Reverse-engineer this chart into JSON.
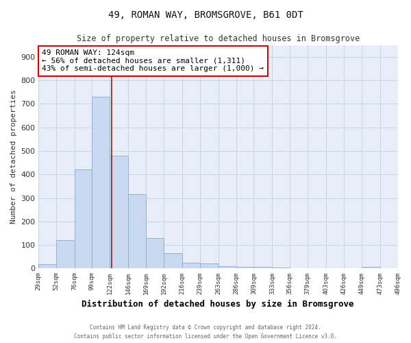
{
  "title": "49, ROMAN WAY, BROMSGROVE, B61 0DT",
  "subtitle": "Size of property relative to detached houses in Bromsgrove",
  "xlabel": "Distribution of detached houses by size in Bromsgrove",
  "ylabel": "Number of detached properties",
  "annotation_line1": "49 ROMAN WAY: 124sqm",
  "annotation_line2": "← 56% of detached houses are smaller (1,311)",
  "annotation_line3": "43% of semi-detached houses are larger (1,000) →",
  "footnote1": "Contains HM Land Registry data © Crown copyright and database right 2024.",
  "footnote2": "Contains public sector information licensed under the Open Government Licence v3.0.",
  "bar_color": "#c9d9ef",
  "bar_edge_color": "#8aaad0",
  "property_line_color": "#cc0000",
  "annotation_box_edge_color": "#cc0000",
  "plot_bg_color": "#e8eef8",
  "fig_bg_color": "#ffffff",
  "grid_color": "#c8d4e8",
  "bins": [
    29,
    52,
    76,
    99,
    122,
    146,
    169,
    192,
    216,
    239,
    263,
    286,
    309,
    333,
    356,
    379,
    403,
    426,
    449,
    473,
    496
  ],
  "counts": [
    20,
    122,
    420,
    730,
    480,
    316,
    130,
    65,
    24,
    22,
    10,
    8,
    6,
    5,
    0,
    0,
    0,
    0,
    8,
    0
  ],
  "property_value": 124,
  "ylim": [
    0,
    950
  ],
  "yticks": [
    0,
    100,
    200,
    300,
    400,
    500,
    600,
    700,
    800,
    900
  ]
}
